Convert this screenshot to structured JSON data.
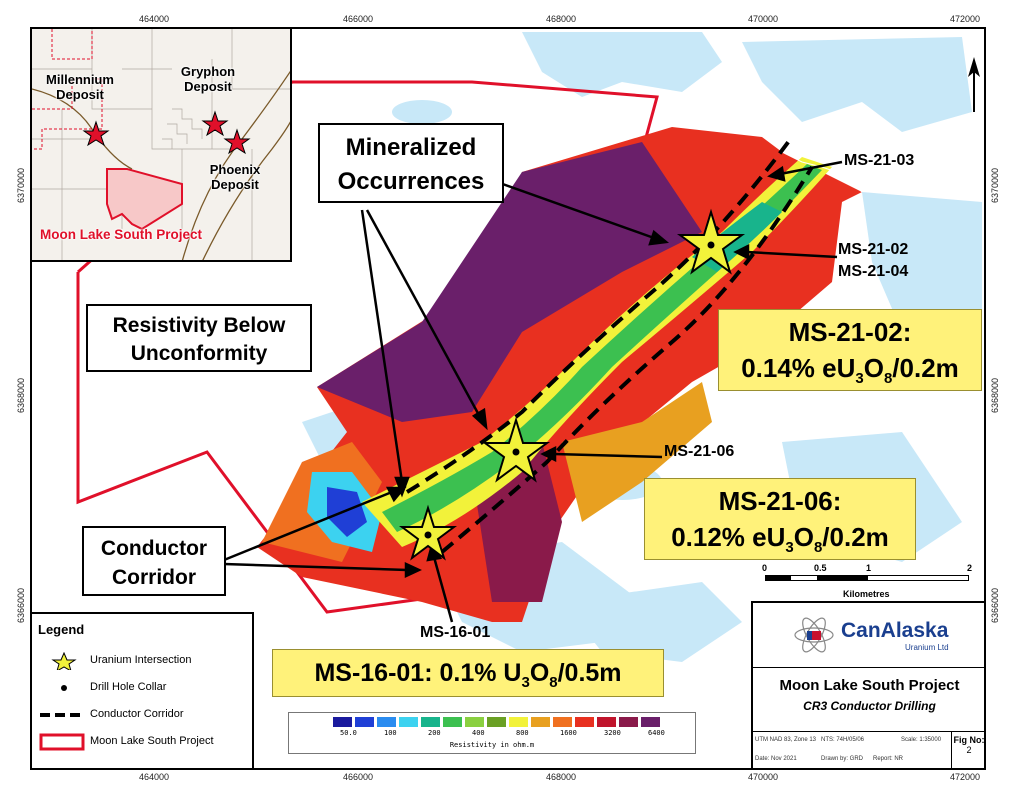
{
  "coords": {
    "top": [
      "464000",
      "466000",
      "468000",
      "470000",
      "472000"
    ],
    "bottom": [
      "464000",
      "466000",
      "468000",
      "470000",
      "472000"
    ],
    "left": [
      "6370000",
      "6368000",
      "6366000"
    ],
    "right": [
      "6370000",
      "6368000",
      "6366000"
    ]
  },
  "inset": {
    "millennium": "Millennium Deposit",
    "gryphon": "Gryphon Deposit",
    "phoenix": "Phoenix Deposit",
    "project": "Moon Lake South Project"
  },
  "callouts": {
    "mineralized": "Mineralized Occurrences",
    "resistivity": "Resistivity Below Unconformity",
    "conductor": "Conductor Corridor"
  },
  "holes": {
    "ms2103": "MS-21-03",
    "ms2102": "MS-21-02",
    "ms2104": "MS-21-04",
    "ms2106": "MS-21-06",
    "ms1601": "MS-16-01"
  },
  "results": {
    "ms2102_title": "MS-21-02:",
    "ms2102_value": "0.14% eU",
    "ms2102_sub3": "3",
    "ms2102_o": "O",
    "ms2102_sub8": "8",
    "ms2102_tail": "/0.2m",
    "ms2106_title": "MS-21-06:",
    "ms2106_value": "0.12% eU",
    "ms2106_sub3": "3",
    "ms2106_o": "O",
    "ms2106_sub8": "8",
    "ms2106_tail": "/0.2m",
    "ms1601_lead": "MS-16-01: 0.1% U",
    "ms1601_sub3": "3",
    "ms1601_o": "O",
    "ms1601_sub8": "8",
    "ms1601_tail": "/0.5m"
  },
  "legend": {
    "title": "Legend",
    "items": [
      "Uranium Intersection",
      "Drill Hole Collar",
      "Conductor Corridor",
      "Moon Lake South Project"
    ]
  },
  "colorbar": {
    "labels": [
      "50.0",
      "100",
      "200",
      "400",
      "800",
      "1600",
      "3200",
      "6400"
    ],
    "title": "Resistivity in ohm.m",
    "colors": [
      "#1a1a9e",
      "#1f3fd6",
      "#2a8cf0",
      "#3cd2f0",
      "#18b48c",
      "#3cc050",
      "#8ad040",
      "#6aa024",
      "#f2f23a",
      "#e8a020",
      "#f07020",
      "#e83020",
      "#c0142c",
      "#8a1a4a",
      "#6a1f6a"
    ]
  },
  "scalebar": {
    "ticks": [
      "0",
      "0.5",
      "1",
      "2"
    ],
    "unit": "Kilometres"
  },
  "titleblock": {
    "company": "CanAlaska",
    "company_sub": "Uranium Ltd",
    "project": "Moon Lake South Project",
    "subtitle": "CR3 Conductor Drilling",
    "utm": "UTM NAD 83, Zone 13",
    "nts": "NTS: 74H/05/06",
    "scale": "Scale: 1:35000",
    "date": "Date: Nov 2021",
    "drawn": "Drawn by: GRD",
    "report": "Report: NR",
    "fig_label": "Fig No:",
    "fig_no": "2"
  },
  "colors": {
    "project_boundary": "#e0102a",
    "lake": "#c8e8f8",
    "highlight": "#fff27a"
  }
}
